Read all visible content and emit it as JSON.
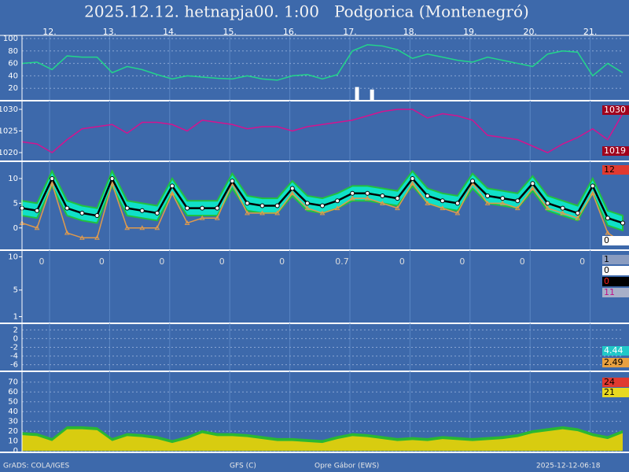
{
  "title": "2025.12.12. hetnapja00. 1:00   Podgorica (Montenegró)",
  "footer": [
    "GrADS: COLA/IGES",
    "GFS (C)",
    "Opre Gábor (EWS)",
    "2025-12-12-06:18"
  ],
  "chart_data": [
    {
      "type": "line",
      "xlim": [
        0,
        240
      ],
      "x": [
        0,
        6,
        12,
        18,
        24,
        30,
        36,
        42,
        48,
        54,
        60,
        66,
        72,
        78,
        84,
        90,
        96,
        102,
        108,
        114,
        120,
        126,
        132,
        138,
        144,
        150,
        156,
        162,
        168,
        174,
        180,
        186,
        192,
        198,
        204,
        210,
        216,
        222,
        228,
        234,
        240
      ],
      "xticks": [
        {
          "value": 11,
          "label": "12."
        },
        {
          "value": 35,
          "label": "13."
        },
        {
          "value": 59,
          "label": "14."
        },
        {
          "value": 83,
          "label": "15."
        },
        {
          "value": 107,
          "label": "16."
        },
        {
          "value": 131,
          "label": "17."
        },
        {
          "value": 155,
          "label": "18."
        },
        {
          "value": 179,
          "label": "19."
        },
        {
          "value": 203,
          "label": "20."
        },
        {
          "value": 227,
          "label": "21."
        }
      ],
      "ylim": [
        0,
        105
      ],
      "yticks": [
        20,
        40,
        60,
        80,
        100
      ],
      "grid": true,
      "series": [
        {
          "color": "#22d68a",
          "values": [
            60,
            62,
            50,
            72,
            70,
            70,
            45,
            55,
            50,
            42,
            35,
            40,
            38,
            36,
            35,
            40,
            35,
            33,
            40,
            42,
            35,
            42,
            80,
            90,
            88,
            82,
            68,
            75,
            70,
            65,
            62,
            70,
            65,
            60,
            55,
            75,
            80,
            78,
            40,
            60,
            45
          ]
        }
      ],
      "bars": {
        "color": "#ffffff",
        "x": [
          134,
          140
        ],
        "values": [
          22,
          18
        ]
      },
      "side_labels": []
    },
    {
      "type": "line",
      "ylim": [
        1018,
        1032
      ],
      "yticks": [
        1020,
        1025,
        1030
      ],
      "grid": false,
      "series": [
        {
          "color": "#d4138f",
          "values": [
            1022.5,
            1022,
            1020,
            1023,
            1025.5,
            1026,
            1026.5,
            1024.5,
            1027,
            1027,
            1026.5,
            1025,
            1027.5,
            1027,
            1026.5,
            1025.5,
            1026,
            1026,
            1025,
            1026,
            1026.5,
            1027,
            1027.5,
            1028.5,
            1029.5,
            1030,
            1030,
            1028,
            1029,
            1028.5,
            1027.5,
            1024,
            1023.5,
            1023,
            1021.5,
            1020,
            1022,
            1023.5,
            1025.5,
            1023,
            1029
          ]
        }
      ],
      "side_labels": [
        {
          "value": 1030,
          "bg": "#a0001c",
          "fg": "#ffffff"
        },
        {
          "value": 1019,
          "bg": "#a0001c",
          "fg": "#ffffff"
        }
      ]
    },
    {
      "type": "line",
      "ylim": [
        -4.5,
        13.5
      ],
      "yticks": [
        0,
        5,
        10
      ],
      "grid": false,
      "band": {
        "color": "#10e0c8",
        "edge": "#22c040",
        "high": [
          5.5,
          5,
          11.5,
          5.5,
          4.5,
          4,
          11.5,
          5.5,
          5,
          4.5,
          10,
          5.5,
          5.5,
          5.5,
          11,
          6.5,
          6,
          6,
          9.5,
          6.5,
          6,
          7,
          8.5,
          8.5,
          8,
          7.5,
          11.5,
          8,
          7,
          6.5,
          11,
          8,
          7.5,
          7,
          10.5,
          6.5,
          5.5,
          4.5,
          10,
          3.5,
          2.5
        ],
        "low": [
          2.5,
          2,
          8.5,
          2.5,
          1.5,
          1,
          8.5,
          2.5,
          2,
          1.5,
          7,
          2.5,
          2.5,
          2.5,
          8,
          3.5,
          3,
          3,
          6.5,
          3.5,
          3,
          4,
          5.5,
          5.5,
          5,
          4.5,
          8.5,
          5,
          4,
          3.5,
          8,
          5,
          4.5,
          4,
          7.5,
          3.5,
          2.5,
          1.5,
          7,
          0.5,
          -0.5
        ]
      },
      "series": [
        {
          "color": "#e09a4c",
          "marker": "triangle",
          "values": [
            1,
            0,
            9,
            -1,
            -2,
            -2,
            9,
            0,
            0,
            0,
            7,
            1,
            2,
            2,
            9,
            3,
            3,
            3,
            7,
            4,
            3,
            4,
            6,
            6,
            5,
            4,
            9,
            5,
            4,
            3,
            9,
            5,
            5,
            4,
            8,
            4,
            3,
            2,
            7,
            -1,
            -3
          ]
        },
        {
          "color": "#000000",
          "marker": "circle",
          "values": [
            4,
            3.5,
            10,
            4,
            3,
            2.5,
            10,
            4,
            3.5,
            3,
            8.5,
            4,
            4,
            4,
            9.5,
            5,
            4.5,
            4.5,
            8,
            5,
            4.5,
            5.5,
            7,
            7,
            6.5,
            6,
            10,
            6.5,
            5.5,
            5,
            9.5,
            6.5,
            6,
            5.5,
            9,
            5,
            4,
            3,
            8.5,
            2,
            1
          ]
        }
      ],
      "side_labels": [
        {
          "value": 12,
          "bg": "#e03a30",
          "fg": "#000000"
        },
        {
          "value": 0,
          "bg": "#ffffff",
          "fg": "#000000"
        }
      ]
    },
    {
      "type": "bar",
      "ylim": [
        0,
        11
      ],
      "yticks": [
        1,
        5,
        10
      ],
      "grid": false,
      "totals": [
        0,
        0,
        0,
        0,
        0,
        0.7,
        0,
        0,
        0,
        0
      ],
      "side_labels": [
        {
          "value": 1,
          "bg": "#8a9cc0",
          "fg": "#000000"
        },
        {
          "value": 0,
          "bg": "#ffffff",
          "fg": "#000000"
        },
        {
          "value": 0,
          "bg": "#000000",
          "fg": "#ff2020"
        },
        {
          "value": 11,
          "bg": "#a8b0c8",
          "fg": "#c0108a"
        }
      ]
    },
    {
      "type": "line",
      "ylim": [
        -7.5,
        3.5
      ],
      "yticks": [
        -6,
        -4,
        -2,
        0,
        2
      ],
      "grid": true,
      "side_labels": [
        {
          "value": 4.44,
          "bg": "#20c8c8",
          "fg": "#ffffff"
        },
        {
          "value": 2.49,
          "bg": "#e8a040",
          "fg": "#000000"
        }
      ]
    },
    {
      "type": "area",
      "ylim": [
        -1.5,
        81
      ],
      "yticks": [
        0,
        10,
        20,
        30,
        40,
        50,
        60,
        70
      ],
      "grid": true,
      "series": [
        {
          "color": "#2ab832",
          "values": [
            19,
            18,
            13,
            25,
            25,
            24,
            13,
            18,
            17,
            15,
            11,
            15,
            21,
            18,
            18,
            17,
            15,
            13,
            13,
            12,
            11,
            15,
            18,
            17,
            15,
            13,
            14,
            13,
            15,
            14,
            13,
            14,
            15,
            17,
            21,
            23,
            25,
            23,
            18,
            15,
            21
          ]
        },
        {
          "color": "#d8cc10",
          "values": [
            16,
            15,
            10,
            22,
            22,
            21,
            10,
            15,
            14,
            12,
            8,
            12,
            18,
            15,
            15,
            14,
            12,
            10,
            10,
            9,
            8,
            12,
            15,
            14,
            12,
            10,
            11,
            10,
            12,
            11,
            10,
            11,
            12,
            14,
            18,
            20,
            22,
            20,
            15,
            12,
            18
          ]
        }
      ],
      "side_labels": [
        {
          "value": 24,
          "bg": "#e03a30",
          "fg": "#000000"
        },
        {
          "value": 21,
          "bg": "#e8d820",
          "fg": "#000000"
        }
      ]
    }
  ]
}
